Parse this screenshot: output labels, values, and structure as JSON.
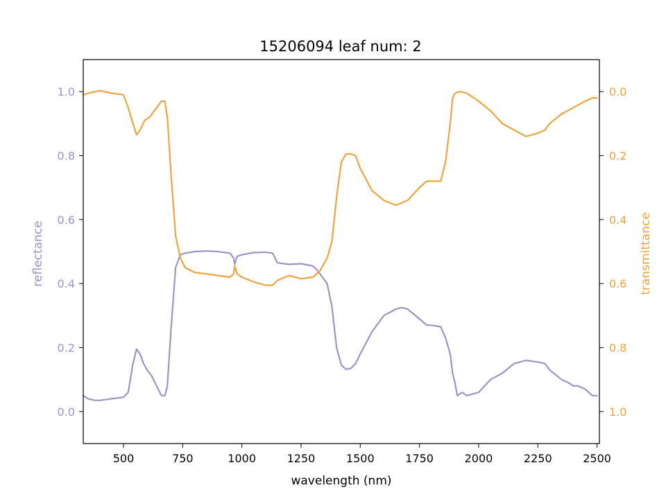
{
  "chart_data": {
    "type": "line",
    "title": "15206094 leaf num: 2",
    "xlabel": "wavelength (nm)",
    "xlim": [
      330,
      2510
    ],
    "xticks": [
      500,
      750,
      1000,
      1250,
      1500,
      1750,
      2000,
      2250,
      2500
    ],
    "xtick_labels": [
      "500",
      "750",
      "1000",
      "1250",
      "1500",
      "1750",
      "2000",
      "2250",
      "2500"
    ],
    "left_axis": {
      "label": "reflectance",
      "color": "#9b94c4",
      "ylim": [
        -0.1,
        1.1
      ],
      "ticks": [
        0.0,
        0.2,
        0.4,
        0.6,
        0.8,
        1.0
      ],
      "tick_labels": [
        "0.0",
        "0.2",
        "0.4",
        "0.6",
        "0.8",
        "1.0"
      ]
    },
    "right_axis": {
      "label": "transmittance",
      "color": "#f0a33e",
      "ylim": [
        1.1,
        -0.1
      ],
      "inverted": true,
      "ticks": [
        0.0,
        0.2,
        0.4,
        0.6,
        0.8,
        1.0
      ],
      "tick_labels": [
        "0.0",
        "0.2",
        "0.4",
        "0.6",
        "0.8",
        "1.0"
      ]
    },
    "series": [
      {
        "axis": "left",
        "color": "#9b94c4",
        "x": [
          330,
          350,
          380,
          400,
          450,
          500,
          520,
          540,
          555,
          570,
          585,
          600,
          620,
          640,
          660,
          675,
          685,
          700,
          720,
          740,
          760,
          800,
          850,
          900,
          950,
          965,
          970,
          980,
          1000,
          1050,
          1100,
          1130,
          1150,
          1200,
          1250,
          1300,
          1320,
          1340,
          1360,
          1380,
          1400,
          1420,
          1440,
          1460,
          1480,
          1500,
          1550,
          1600,
          1650,
          1675,
          1700,
          1750,
          1780,
          1800,
          1840,
          1860,
          1880,
          1890,
          1900,
          1910,
          1930,
          1950,
          2000,
          2050,
          2100,
          2150,
          2200,
          2250,
          2280,
          2300,
          2350,
          2380,
          2400,
          2420,
          2450,
          2480,
          2500
        ],
        "y": [
          0.05,
          0.04,
          0.035,
          0.035,
          0.04,
          0.045,
          0.06,
          0.15,
          0.195,
          0.18,
          0.15,
          0.13,
          0.11,
          0.08,
          0.05,
          0.05,
          0.08,
          0.25,
          0.45,
          0.49,
          0.495,
          0.5,
          0.502,
          0.5,
          0.495,
          0.48,
          0.46,
          0.485,
          0.49,
          0.497,
          0.498,
          0.495,
          0.465,
          0.46,
          0.462,
          0.455,
          0.44,
          0.42,
          0.4,
          0.33,
          0.2,
          0.145,
          0.132,
          0.135,
          0.15,
          0.18,
          0.25,
          0.3,
          0.32,
          0.325,
          0.32,
          0.29,
          0.27,
          0.27,
          0.265,
          0.23,
          0.18,
          0.12,
          0.09,
          0.05,
          0.06,
          0.05,
          0.06,
          0.1,
          0.12,
          0.15,
          0.16,
          0.155,
          0.15,
          0.13,
          0.1,
          0.09,
          0.08,
          0.08,
          0.07,
          0.05,
          0.05
        ]
      },
      {
        "axis": "right",
        "color": "#f0a33e",
        "x": [
          330,
          350,
          380,
          400,
          450,
          500,
          520,
          540,
          555,
          570,
          590,
          610,
          640,
          660,
          675,
          685,
          700,
          720,
          740,
          760,
          800,
          850,
          900,
          950,
          965,
          970,
          980,
          1000,
          1050,
          1100,
          1130,
          1150,
          1200,
          1250,
          1300,
          1330,
          1360,
          1380,
          1400,
          1420,
          1440,
          1460,
          1480,
          1500,
          1550,
          1600,
          1650,
          1700,
          1750,
          1780,
          1800,
          1840,
          1860,
          1880,
          1890,
          1900,
          1920,
          1950,
          2000,
          2050,
          2100,
          2150,
          2200,
          2250,
          2280,
          2300,
          2350,
          2400,
          2450,
          2480,
          2500
        ],
        "y": [
          0.01,
          0.005,
          0.0,
          -0.003,
          0.005,
          0.01,
          0.05,
          0.1,
          0.135,
          0.12,
          0.09,
          0.08,
          0.05,
          0.03,
          0.03,
          0.08,
          0.25,
          0.45,
          0.52,
          0.55,
          0.565,
          0.57,
          0.575,
          0.58,
          0.57,
          0.545,
          0.57,
          0.58,
          0.595,
          0.605,
          0.605,
          0.59,
          0.575,
          0.585,
          0.58,
          0.56,
          0.52,
          0.47,
          0.33,
          0.22,
          0.195,
          0.195,
          0.2,
          0.24,
          0.31,
          0.34,
          0.355,
          0.34,
          0.3,
          0.28,
          0.28,
          0.28,
          0.22,
          0.1,
          0.02,
          0.005,
          0.0,
          0.005,
          0.03,
          0.06,
          0.1,
          0.12,
          0.14,
          0.13,
          0.12,
          0.1,
          0.07,
          0.05,
          0.03,
          0.02,
          0.02
        ]
      }
    ]
  }
}
